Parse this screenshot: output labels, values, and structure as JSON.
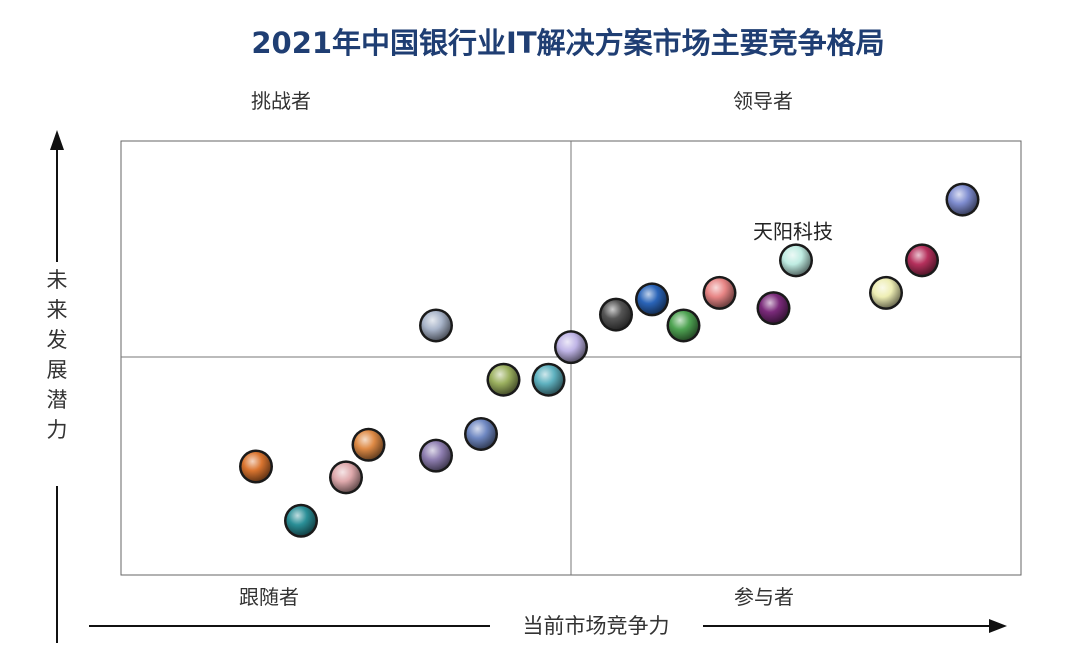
{
  "chart_data": {
    "type": "scatter",
    "title": "2021年中国银行业IT解决方案市场主要竞争格局",
    "xlabel": "当前市场竞争力",
    "ylabel": "未来发展潜力",
    "xlim": [
      0,
      100
    ],
    "ylim": [
      0,
      100
    ],
    "grid": false,
    "quadrants": {
      "top_left": "挑战者",
      "top_right": "领导者",
      "bottom_left": "跟随者",
      "bottom_right": "参与者"
    },
    "points": [
      {
        "x": 15.0,
        "y": 25.0,
        "color": "#d9742f",
        "label": ""
      },
      {
        "x": 20.0,
        "y": 12.5,
        "color": "#2a8f97",
        "label": ""
      },
      {
        "x": 25.0,
        "y": 22.5,
        "color": "#dfa9ac",
        "label": ""
      },
      {
        "x": 27.5,
        "y": 30.0,
        "color": "#de8a45",
        "label": ""
      },
      {
        "x": 35.0,
        "y": 27.5,
        "color": "#8f7fb1",
        "label": ""
      },
      {
        "x": 35.0,
        "y": 57.5,
        "color": "#a9b5ca",
        "label": ""
      },
      {
        "x": 40.0,
        "y": 32.5,
        "color": "#6f88c2",
        "label": ""
      },
      {
        "x": 42.5,
        "y": 45.0,
        "color": "#9bb05f",
        "label": ""
      },
      {
        "x": 47.5,
        "y": 45.0,
        "color": "#5fb2c0",
        "label": ""
      },
      {
        "x": 50.0,
        "y": 52.5,
        "color": "#bfb4e6",
        "label": ""
      },
      {
        "x": 55.0,
        "y": 60.0,
        "color": "#555555",
        "label": ""
      },
      {
        "x": 59.0,
        "y": 63.5,
        "color": "#2a64b8",
        "label": ""
      },
      {
        "x": 62.5,
        "y": 57.5,
        "color": "#4fa453",
        "label": ""
      },
      {
        "x": 66.5,
        "y": 65.0,
        "color": "#e78585",
        "label": ""
      },
      {
        "x": 72.5,
        "y": 61.5,
        "color": "#7a2a7a",
        "label": ""
      },
      {
        "x": 75.0,
        "y": 72.5,
        "color": "#bfece2",
        "label": "天阳科技"
      },
      {
        "x": 85.0,
        "y": 65.0,
        "color": "#eeeeb4",
        "label": ""
      },
      {
        "x": 89.0,
        "y": 72.5,
        "color": "#b5305c",
        "label": ""
      },
      {
        "x": 93.5,
        "y": 86.5,
        "color": "#7f8dd0",
        "label": ""
      }
    ]
  }
}
